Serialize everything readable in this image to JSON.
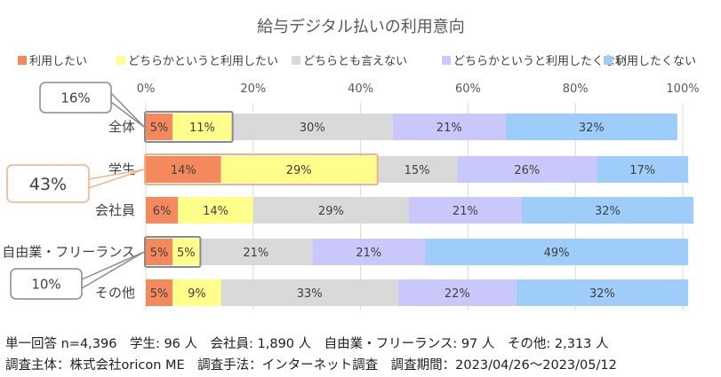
{
  "chart_data": {
    "type": "bar",
    "orientation": "horizontal",
    "stacked": true,
    "percent_stacked": true,
    "title": "給与デジタル払いの利用意向",
    "categories": [
      "全体",
      "学生",
      "会社員",
      "自由業・フリーランス",
      "その他"
    ],
    "series": [
      {
        "name": "利用したい",
        "color": "#f4895e",
        "values": [
          5,
          14,
          6,
          5,
          5
        ]
      },
      {
        "name": "どちらかというと利用したい",
        "color": "#fefe8a",
        "values": [
          11,
          29,
          14,
          5,
          9
        ]
      },
      {
        "name": "どちらとも言えない",
        "color": "#d9d9d9",
        "values": [
          30,
          15,
          29,
          21,
          33
        ]
      },
      {
        "name": "どちらかというと利用したくない",
        "color": "#cac7fa",
        "values": [
          21,
          26,
          21,
          21,
          22
        ]
      },
      {
        "name": "利用したくない",
        "color": "#9fcdf9",
        "values": [
          32,
          17,
          32,
          49,
          32
        ]
      }
    ],
    "data_label_suffix": "%",
    "xlim": [
      0,
      100
    ],
    "xticks": [
      "0%",
      "20%",
      "40%",
      "60%",
      "80%",
      "100%"
    ],
    "grid": true,
    "legend_position": "top",
    "callouts": [
      {
        "category": "全体",
        "text": "16%",
        "border_color": "#8a8a8a",
        "highlight_series": [
          0,
          1
        ]
      },
      {
        "category": "学生",
        "text": "43%",
        "border_color": "#f4b183",
        "highlight_series": [
          0,
          1
        ]
      },
      {
        "category": "自由業・フリーランス",
        "text": "10%",
        "border_color": "#8a8a8a",
        "highlight_series": [
          0,
          1
        ]
      }
    ]
  },
  "footnotes": [
    "単一回答 n=4,396　学生: 96 人　会社員: 1,890 人　自由業・フリーランス: 97 人　その他: 2,313 人",
    "調査主体：株式会社oricon ME　調査手法：インターネット調査　調査期間：2023/04/26～2023/05/12"
  ]
}
